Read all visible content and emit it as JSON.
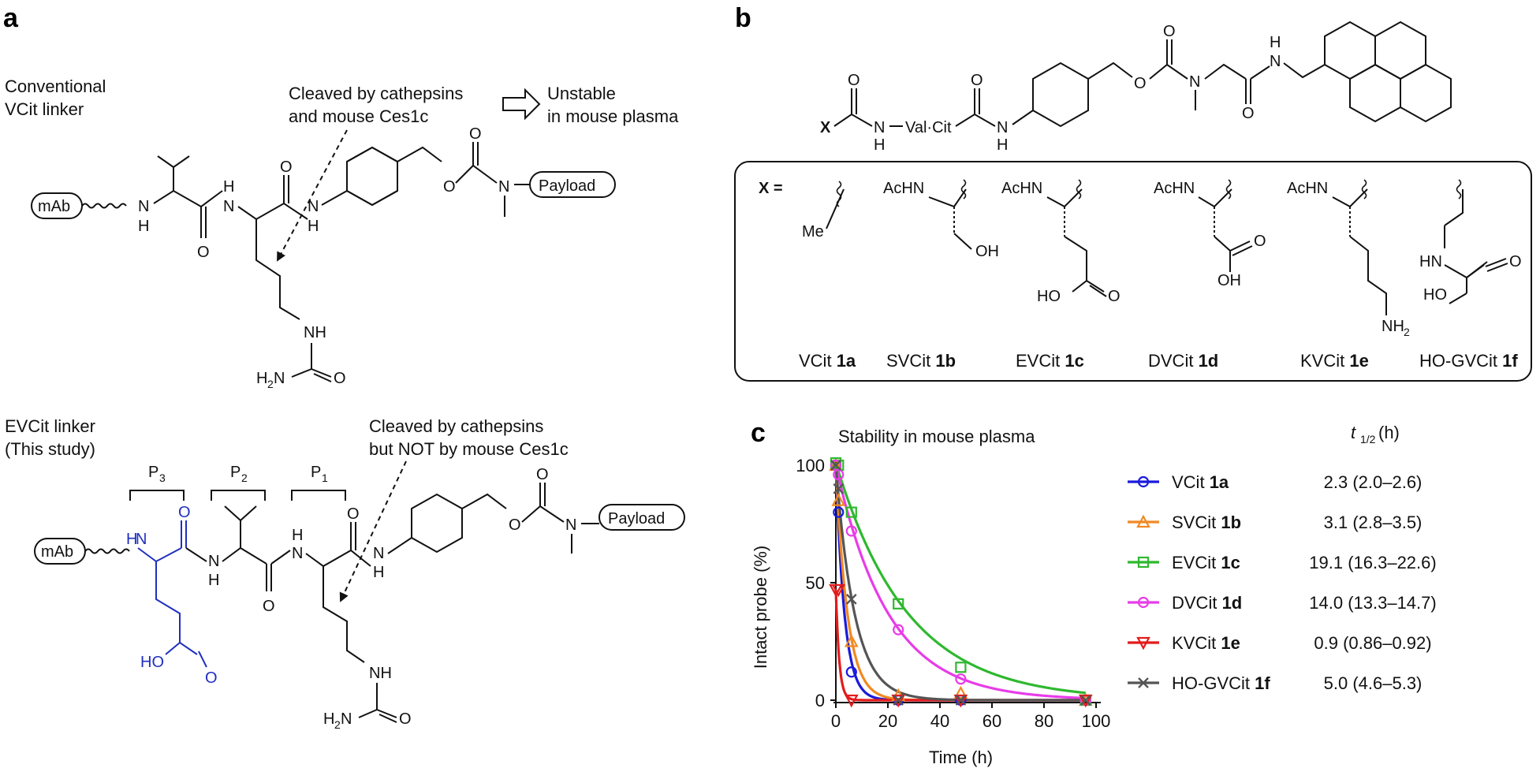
{
  "panels": {
    "a": "a",
    "b": "b",
    "c": "c"
  },
  "panel_a": {
    "conventional_line1": "Conventional",
    "conventional_line2": "VCit linker",
    "cleave_top_line1": "Cleaved by cathepsins",
    "cleave_top_line2": "and mouse Ces1c",
    "unstable_line1": "Unstable",
    "unstable_line2": "in mouse plasma",
    "mab": "mAb",
    "payload": "Payload",
    "evcit_line1": "EVCit linker",
    "evcit_line2": "(This study)",
    "cleave_bottom_line1": "Cleaved by cathepsins",
    "cleave_bottom_line2": "but NOT by mouse Ces1c",
    "p3": "P",
    "p3_sub": "3",
    "p2": "P",
    "p2_sub": "2",
    "p1": "P",
    "p1_sub": "1",
    "atoms": {
      "H": "H",
      "N": "N",
      "O": "O",
      "NH": "NH",
      "HO": "HO",
      "H2N": "H",
      "H2N_sub": "2",
      "H2N_N": "N"
    }
  },
  "panel_b": {
    "x_label": "X",
    "val_cit": "Val·Cit",
    "x_equals": "X =",
    "me": "Me",
    "achn": "AcHN",
    "oh": "OH",
    "ho": "HO",
    "hn": "HN",
    "nh2": "NH",
    "nh2_sub": "2",
    "compounds": [
      {
        "name": "VCit ",
        "id": "1a"
      },
      {
        "name": "SVCit ",
        "id": "1b"
      },
      {
        "name": "EVCit ",
        "id": "1c"
      },
      {
        "name": "DVCit ",
        "id": "1d"
      },
      {
        "name": "KVCit ",
        "id": "1e"
      },
      {
        "name": "HO-GVCit ",
        "id": "1f"
      }
    ]
  },
  "panel_c": {
    "title": "Stability in mouse plasma",
    "t_half_label": "t",
    "t_half_sub": "1/2",
    "t_half_unit": " (h)",
    "legend": [
      {
        "name": "VCit ",
        "id": "1a",
        "t_half": "2.3 (2.0–2.6)",
        "color": "#1a1adb",
        "marker": "circle"
      },
      {
        "name": "SVCit ",
        "id": "1b",
        "t_half": "3.1 (2.8–3.5)",
        "color": "#f08a24",
        "marker": "triangle-up"
      },
      {
        "name": "EVCit ",
        "id": "1c",
        "t_half": "19.1 (16.3–22.6)",
        "color": "#2fb82f",
        "marker": "square"
      },
      {
        "name": "DVCit ",
        "id": "1d",
        "t_half": "14.0 (13.3–14.7)",
        "color": "#e83ce8",
        "marker": "circle"
      },
      {
        "name": "KVCit ",
        "id": "1e",
        "t_half": "0.9 (0.86–0.92)",
        "color": "#e31b1b",
        "marker": "triangle-down"
      },
      {
        "name": "HO-GVCit ",
        "id": "1f",
        "t_half": "5.0 (4.6–5.3)",
        "color": "#555555",
        "marker": "x"
      }
    ]
  },
  "chart_data": {
    "type": "scatter",
    "title": "Stability in mouse plasma",
    "xlabel": "Time (h)",
    "ylabel": "Intact probe (%)",
    "xlim": [
      0,
      100
    ],
    "ylim": [
      0,
      100
    ],
    "xticks": [
      0,
      20,
      40,
      60,
      80,
      100
    ],
    "yticks": [
      0,
      50,
      100
    ],
    "legend_position": "right",
    "series": [
      {
        "name": "VCit 1a",
        "color": "#1a1adb",
        "marker": "circle",
        "t_half": 2.3,
        "x": [
          0,
          1,
          6,
          24,
          48,
          96
        ],
        "y": [
          100,
          80,
          12,
          0,
          0,
          0
        ]
      },
      {
        "name": "SVCit 1b",
        "color": "#f08a24",
        "marker": "triangle-up",
        "t_half": 3.1,
        "x": [
          0,
          1,
          6,
          24,
          48,
          96
        ],
        "y": [
          100,
          85,
          25,
          2,
          3,
          0
        ]
      },
      {
        "name": "EVCit 1c",
        "color": "#2fb82f",
        "marker": "square",
        "t_half": 19.1,
        "x": [
          0,
          1,
          6,
          24,
          48,
          96
        ],
        "y": [
          101,
          100,
          80,
          41,
          14,
          0
        ]
      },
      {
        "name": "DVCit 1d",
        "color": "#e83ce8",
        "marker": "circle",
        "t_half": 14.0,
        "x": [
          0,
          1,
          6,
          24,
          48,
          96
        ],
        "y": [
          100,
          96,
          72,
          30,
          9,
          0
        ]
      },
      {
        "name": "KVCit 1e",
        "color": "#e31b1b",
        "marker": "triangle-down",
        "t_half": 0.9,
        "x": [
          0,
          1,
          6,
          24,
          48,
          96
        ],
        "y": [
          47,
          47,
          0,
          0,
          0,
          0
        ]
      },
      {
        "name": "HO-GVCit 1f",
        "color": "#555555",
        "marker": "x",
        "t_half": 5.0,
        "x": [
          0,
          1,
          6,
          24,
          48,
          96
        ],
        "y": [
          100,
          90,
          43,
          0,
          0,
          0
        ]
      }
    ]
  }
}
